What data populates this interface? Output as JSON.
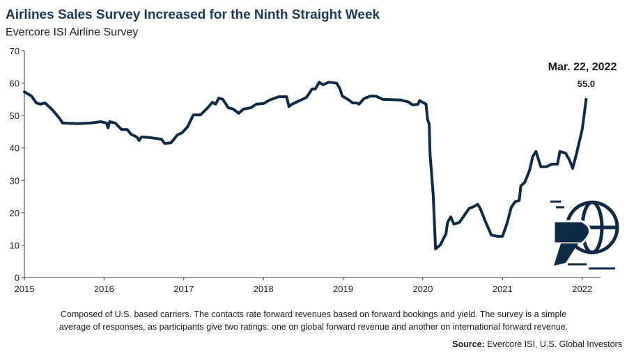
{
  "chart_data": {
    "type": "line",
    "title": "Airlines Sales Survey Increased for the Ninth Straight Week",
    "subtitle": "Evercore ISI Airline Survey",
    "annotation": "Mar. 22, 2022",
    "notes": [
      "Composed of U.S. based carriers. The contacts rate forward revenues based on forward bookings and yield. The survey is a simple",
      "average of responses, as participants give two ratings: one on global forward revenue and another on international forward revenue."
    ],
    "source_label": "Source:",
    "source": "Evercore ISI, U.S. Global Investors",
    "x": [
      2015.0,
      2015.09,
      2015.15,
      2015.2,
      2015.26,
      2015.35,
      2015.44,
      2015.48,
      2015.66,
      2015.83,
      2015.96,
      2016.03,
      2016.05,
      2016.07,
      2016.14,
      2016.22,
      2016.29,
      2016.34,
      2016.41,
      2016.44,
      2016.47,
      2016.57,
      2016.63,
      2016.72,
      2016.76,
      2016.84,
      2016.92,
      2016.98,
      2017.05,
      2017.12,
      2017.21,
      2017.3,
      2017.36,
      2017.4,
      2017.44,
      2017.49,
      2017.56,
      2017.62,
      2017.69,
      2017.75,
      2017.84,
      2017.91,
      2018.0,
      2018.08,
      2018.19,
      2018.29,
      2018.32,
      2018.36,
      2018.47,
      2018.54,
      2018.61,
      2018.65,
      2018.7,
      2018.75,
      2018.82,
      2018.92,
      2018.96,
      2018.99,
      2019.06,
      2019.12,
      2019.17,
      2019.2,
      2019.26,
      2019.34,
      2019.41,
      2019.5,
      2019.72,
      2019.82,
      2019.87,
      2019.94,
      2019.96,
      2020.04,
      2020.06,
      2020.08,
      2020.09,
      2020.13,
      2020.16,
      2020.22,
      2020.29,
      2020.31,
      2020.35,
      2020.39,
      2020.46,
      2020.53,
      2020.58,
      2020.64,
      2020.69,
      2020.72,
      2020.79,
      2020.86,
      2020.94,
      2021.0,
      2021.06,
      2021.11,
      2021.16,
      2021.21,
      2021.23,
      2021.28,
      2021.34,
      2021.38,
      2021.42,
      2021.48,
      2021.55,
      2021.62,
      2021.69,
      2021.72,
      2021.79,
      2021.84,
      2021.88,
      2021.93,
      2022.0,
      2022.05
    ],
    "series": [
      {
        "color": "#0d2b45",
        "values": [
          57.3,
          56,
          53.9,
          53.5,
          53.9,
          51.8,
          49.2,
          47.7,
          47.5,
          47.7,
          48.1,
          47.7,
          46.2,
          48.1,
          47.7,
          45.7,
          45.7,
          44.2,
          43.4,
          42.3,
          43.4,
          43.2,
          43,
          42.7,
          41.4,
          41.6,
          44,
          44.7,
          46.6,
          50.2,
          50.2,
          52.4,
          54.1,
          53.5,
          55.4,
          55,
          52.4,
          52,
          50.7,
          52,
          52.4,
          53.5,
          53.7,
          54.8,
          55.8,
          55.8,
          52.8,
          53.5,
          54.8,
          55.6,
          58.2,
          58.2,
          60.3,
          59.5,
          60.3,
          60,
          58.2,
          56,
          55,
          53.9,
          53.9,
          53.5,
          55.2,
          56,
          56,
          55,
          54.8,
          54.2,
          53.3,
          53.5,
          54.6,
          53.5,
          48.7,
          47.4,
          38.4,
          25.6,
          8.8,
          10.1,
          13.5,
          17,
          18.7,
          16.5,
          17,
          19.5,
          21.3,
          21.9,
          22.6,
          21.3,
          17,
          13.1,
          12.7,
          12.7,
          17,
          21.7,
          23.4,
          23.8,
          28.3,
          29.4,
          33.1,
          37.4,
          38.9,
          34.2,
          34.2,
          35,
          35,
          38.9,
          38.4,
          36.3,
          33.7,
          38.4,
          45.7,
          55
        ],
        "value_labels": [
          null,
          null,
          null,
          null,
          null,
          null,
          null,
          null,
          null,
          null,
          null,
          null,
          null,
          null,
          null,
          null,
          null,
          null,
          null,
          null,
          null,
          null,
          null,
          null,
          null,
          null,
          null,
          null,
          null,
          null,
          null,
          null,
          null,
          null,
          null,
          null,
          null,
          null,
          null,
          null,
          null,
          null,
          null,
          null,
          null,
          null,
          null,
          null,
          null,
          null,
          null,
          null,
          null,
          null,
          null,
          null,
          null,
          null,
          null,
          null,
          null,
          null,
          null,
          null,
          null,
          null,
          null,
          null,
          null,
          null,
          null,
          null,
          null,
          null,
          null,
          null,
          null,
          null,
          null,
          null,
          null,
          null,
          null,
          null,
          null,
          null,
          null,
          null,
          null,
          null,
          null,
          null,
          null,
          null,
          null,
          null,
          null,
          null,
          null,
          null,
          null,
          null,
          null,
          null,
          null,
          null,
          null,
          null,
          null,
          null,
          null,
          "55.0"
        ]
      }
    ],
    "xlim": [
      2015,
      2022.23
    ],
    "xticks": [
      2015,
      2016,
      2017,
      2018,
      2019,
      2020,
      2021,
      2022
    ],
    "ylim": [
      0,
      70
    ],
    "yticks": [
      0,
      10,
      20,
      30,
      40,
      50,
      60,
      70
    ]
  }
}
